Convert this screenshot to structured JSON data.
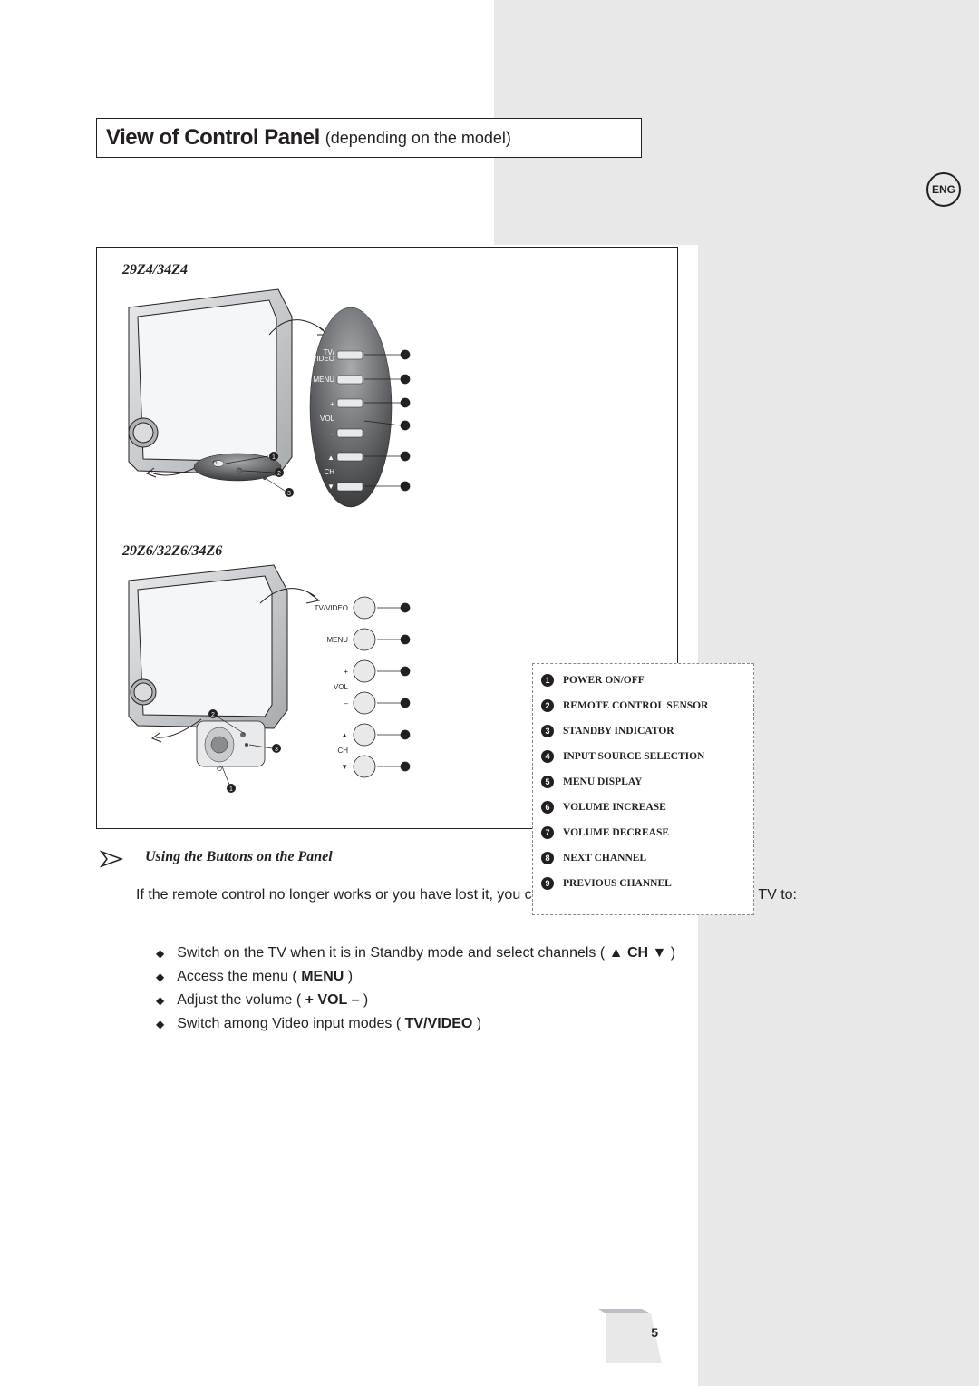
{
  "title": {
    "main": "View of Control Panel",
    "sub": "(depending on the model)",
    "main_fontsize": 24,
    "sub_fontsize": 18
  },
  "lang_badge": "ENG",
  "diagram": {
    "model_a": "29Z4/34Z4",
    "model_b": "29Z6/32Z6/34Z6",
    "button_labels_a": [
      "TV/\nVIDEO",
      "MENU",
      "+",
      "VOL",
      "–",
      "▲",
      "CH",
      "▼"
    ],
    "button_labels_b": [
      "TV/VIDEO",
      "MENU",
      "+",
      "VOL",
      "–",
      "▲",
      "CH",
      "▼"
    ],
    "callout_numbers": [
      1,
      2,
      3,
      4,
      5,
      6,
      7,
      8,
      9
    ],
    "legend": [
      {
        "n": 1,
        "label": "POWER ON/OFF"
      },
      {
        "n": 2,
        "label": "REMOTE CONTROL SENSOR"
      },
      {
        "n": 3,
        "label": "STANDBY INDICATOR"
      },
      {
        "n": 4,
        "label": "INPUT SOURCE SELECTION"
      },
      {
        "n": 5,
        "label": "MENU DISPLAY"
      },
      {
        "n": 6,
        "label": "VOLUME INCREASE"
      },
      {
        "n": 7,
        "label": "VOLUME DECREASE"
      },
      {
        "n": 8,
        "label": "NEXT CHANNEL"
      },
      {
        "n": 9,
        "label": "PREVIOUS CHANNEL"
      }
    ],
    "colors": {
      "tv_body_light": "#d9dbdd",
      "tv_body_mid": "#b0b2b5",
      "tv_body_dark": "#808285",
      "screen": "#f5f6f7",
      "panel_dark": "#4a4c4f",
      "panel_mid": "#7d7f82",
      "button_face": "#e8e9ea",
      "stroke": "#231f20"
    }
  },
  "section": {
    "heading": "Using the Buttons on the Panel",
    "intro": "If the remote control no longer works or you have lost it, you can use controls on the panel of the TV to:",
    "bullets": [
      "Switch on the TV when it is in Standby mode and select channels ( ▲ <b>CH</b> ▼ )",
      "Access the menu ( <b>MENU</b> )",
      "Adjust the volume ( <b>+ VOL –</b> )",
      "Switch among Video input modes ( <b>TV/VIDEO</b> )"
    ]
  },
  "page_number": "5",
  "layout": {
    "bg_gray": "#e8e8e8"
  }
}
